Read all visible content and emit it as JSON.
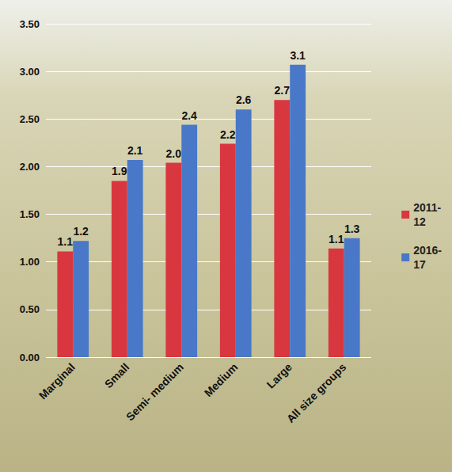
{
  "chart_data": {
    "type": "bar",
    "categories": [
      "Marginal",
      "Small",
      "Semi- medium",
      "Medium",
      "Large",
      "All size groups"
    ],
    "series": [
      {
        "name": "2011-12",
        "color": "#d9373f",
        "values": [
          1.11,
          1.85,
          2.04,
          2.24,
          2.7,
          1.14
        ],
        "value_labels": [
          "1.1",
          "1.9",
          "2.0",
          "2.2",
          "2.7",
          "1.1"
        ]
      },
      {
        "name": "2016-17",
        "color": "#4a78c8",
        "values": [
          1.22,
          2.07,
          2.44,
          2.6,
          3.07,
          1.25
        ],
        "value_labels": [
          "1.2",
          "2.1",
          "2.4",
          "2.6",
          "3.1",
          "1.3"
        ]
      }
    ],
    "ylim": [
      0,
      3.5
    ],
    "yticks": [
      {
        "value": 0,
        "label": "0.00"
      },
      {
        "value": 0.5,
        "label": "0.50"
      },
      {
        "value": 1,
        "label": "1.00"
      },
      {
        "value": 1.5,
        "label": "1.50"
      },
      {
        "value": 2,
        "label": "2.00"
      },
      {
        "value": 2.5,
        "label": "2.50"
      },
      {
        "value": 3,
        "label": "3.00"
      },
      {
        "value": 3.5,
        "label": "3.50"
      }
    ],
    "grid": true,
    "legend": "right",
    "data_labels": true
  }
}
